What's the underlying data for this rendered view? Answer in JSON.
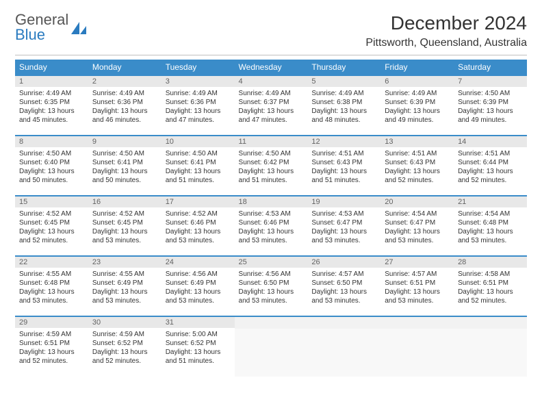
{
  "logo": {
    "word1": "General",
    "word2": "Blue"
  },
  "title": "December 2024",
  "location": "Pittsworth, Queensland, Australia",
  "colors": {
    "header_bg": "#3a8cc9",
    "header_text": "#ffffff",
    "row_border": "#3a8cc9",
    "daynum_bg": "#e8e8e8",
    "daynum_text": "#636363",
    "body_text": "#333333",
    "logo_gray": "#555555",
    "logo_blue": "#2a7bbf",
    "empty_bg": "#f8f8f8"
  },
  "day_headers": [
    "Sunday",
    "Monday",
    "Tuesday",
    "Wednesday",
    "Thursday",
    "Friday",
    "Saturday"
  ],
  "weeks": [
    [
      {
        "n": "1",
        "sr": "4:49 AM",
        "ss": "6:35 PM",
        "dl": "13 hours and 45 minutes."
      },
      {
        "n": "2",
        "sr": "4:49 AM",
        "ss": "6:36 PM",
        "dl": "13 hours and 46 minutes."
      },
      {
        "n": "3",
        "sr": "4:49 AM",
        "ss": "6:36 PM",
        "dl": "13 hours and 47 minutes."
      },
      {
        "n": "4",
        "sr": "4:49 AM",
        "ss": "6:37 PM",
        "dl": "13 hours and 47 minutes."
      },
      {
        "n": "5",
        "sr": "4:49 AM",
        "ss": "6:38 PM",
        "dl": "13 hours and 48 minutes."
      },
      {
        "n": "6",
        "sr": "4:49 AM",
        "ss": "6:39 PM",
        "dl": "13 hours and 49 minutes."
      },
      {
        "n": "7",
        "sr": "4:50 AM",
        "ss": "6:39 PM",
        "dl": "13 hours and 49 minutes."
      }
    ],
    [
      {
        "n": "8",
        "sr": "4:50 AM",
        "ss": "6:40 PM",
        "dl": "13 hours and 50 minutes."
      },
      {
        "n": "9",
        "sr": "4:50 AM",
        "ss": "6:41 PM",
        "dl": "13 hours and 50 minutes."
      },
      {
        "n": "10",
        "sr": "4:50 AM",
        "ss": "6:41 PM",
        "dl": "13 hours and 51 minutes."
      },
      {
        "n": "11",
        "sr": "4:50 AM",
        "ss": "6:42 PM",
        "dl": "13 hours and 51 minutes."
      },
      {
        "n": "12",
        "sr": "4:51 AM",
        "ss": "6:43 PM",
        "dl": "13 hours and 51 minutes."
      },
      {
        "n": "13",
        "sr": "4:51 AM",
        "ss": "6:43 PM",
        "dl": "13 hours and 52 minutes."
      },
      {
        "n": "14",
        "sr": "4:51 AM",
        "ss": "6:44 PM",
        "dl": "13 hours and 52 minutes."
      }
    ],
    [
      {
        "n": "15",
        "sr": "4:52 AM",
        "ss": "6:45 PM",
        "dl": "13 hours and 52 minutes."
      },
      {
        "n": "16",
        "sr": "4:52 AM",
        "ss": "6:45 PM",
        "dl": "13 hours and 53 minutes."
      },
      {
        "n": "17",
        "sr": "4:52 AM",
        "ss": "6:46 PM",
        "dl": "13 hours and 53 minutes."
      },
      {
        "n": "18",
        "sr": "4:53 AM",
        "ss": "6:46 PM",
        "dl": "13 hours and 53 minutes."
      },
      {
        "n": "19",
        "sr": "4:53 AM",
        "ss": "6:47 PM",
        "dl": "13 hours and 53 minutes."
      },
      {
        "n": "20",
        "sr": "4:54 AM",
        "ss": "6:47 PM",
        "dl": "13 hours and 53 minutes."
      },
      {
        "n": "21",
        "sr": "4:54 AM",
        "ss": "6:48 PM",
        "dl": "13 hours and 53 minutes."
      }
    ],
    [
      {
        "n": "22",
        "sr": "4:55 AM",
        "ss": "6:48 PM",
        "dl": "13 hours and 53 minutes."
      },
      {
        "n": "23",
        "sr": "4:55 AM",
        "ss": "6:49 PM",
        "dl": "13 hours and 53 minutes."
      },
      {
        "n": "24",
        "sr": "4:56 AM",
        "ss": "6:49 PM",
        "dl": "13 hours and 53 minutes."
      },
      {
        "n": "25",
        "sr": "4:56 AM",
        "ss": "6:50 PM",
        "dl": "13 hours and 53 minutes."
      },
      {
        "n": "26",
        "sr": "4:57 AM",
        "ss": "6:50 PM",
        "dl": "13 hours and 53 minutes."
      },
      {
        "n": "27",
        "sr": "4:57 AM",
        "ss": "6:51 PM",
        "dl": "13 hours and 53 minutes."
      },
      {
        "n": "28",
        "sr": "4:58 AM",
        "ss": "6:51 PM",
        "dl": "13 hours and 52 minutes."
      }
    ],
    [
      {
        "n": "29",
        "sr": "4:59 AM",
        "ss": "6:51 PM",
        "dl": "13 hours and 52 minutes."
      },
      {
        "n": "30",
        "sr": "4:59 AM",
        "ss": "6:52 PM",
        "dl": "13 hours and 52 minutes."
      },
      {
        "n": "31",
        "sr": "5:00 AM",
        "ss": "6:52 PM",
        "dl": "13 hours and 51 minutes."
      },
      null,
      null,
      null,
      null
    ]
  ],
  "labels": {
    "sunrise": "Sunrise:",
    "sunset": "Sunset:",
    "daylight": "Daylight:"
  }
}
